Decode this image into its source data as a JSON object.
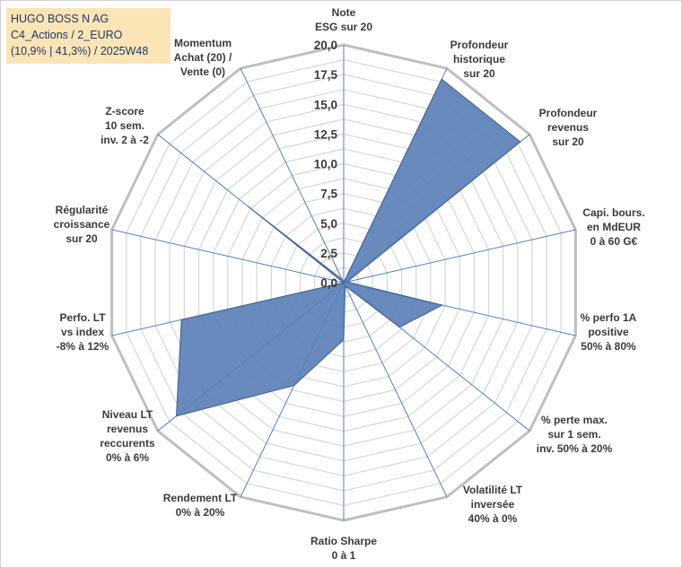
{
  "title_lines": [
    "HUGO BOSS N AG",
    "C4_Actions / 2_EURO",
    "(10,9% | 41,3%) / 2025W48"
  ],
  "chart_data": {
    "type": "radar",
    "title": "HUGO BOSS N AG",
    "range": [
      0,
      20
    ],
    "ticks": [
      "0,0",
      "2,5",
      "5,0",
      "7,5",
      "10,0",
      "12,5",
      "15,0",
      "17,5",
      "20,0"
    ],
    "axes": [
      {
        "label": [
          "Note",
          "ESG sur 20"
        ],
        "value": 0
      },
      {
        "label": [
          "Profondeur",
          "historique",
          "sur 20"
        ],
        "value": 19
      },
      {
        "label": [
          "Profondeur",
          "revenus",
          "sur 20"
        ],
        "value": 19
      },
      {
        "label": [
          "Capi. bours.",
          "en MdEUR",
          "0 à 60 G€"
        ],
        "value": 0.3
      },
      {
        "label": [
          "% perfo 1A",
          "positive",
          "50% à 80%"
        ],
        "value": 8.5
      },
      {
        "label": [
          "% perte max.",
          "sur 1 sem.",
          "inv. 50% à 20%"
        ],
        "value": 6
      },
      {
        "label": [
          "Volatilité LT",
          "inversée",
          "40% à 0%"
        ],
        "value": 0.3
      },
      {
        "label": [
          "Ratio Sharpe",
          "0 à 1"
        ],
        "value": 4.8
      },
      {
        "label": [
          "Rendement LT",
          "0% à 20%"
        ],
        "value": 9.6
      },
      {
        "label": [
          "Niveau LT",
          "revenus",
          "reccurents",
          "0% à 6%"
        ],
        "value": 18
      },
      {
        "label": [
          "Perfo. LT",
          "vs index",
          "-8% à 12%"
        ],
        "value": 14
      },
      {
        "label": [
          "Régularité",
          "croissance",
          "sur 20"
        ],
        "value": 0
      },
      {
        "label": [
          "Z-score",
          "10 sem.",
          "inv. 2 à -2"
        ],
        "value": 10.3
      },
      {
        "label": [
          "Momentum",
          "Achat (20) /",
          "Vente (0)"
        ],
        "value": 0.3
      }
    ]
  },
  "colors": {
    "fill": "#5b80b6",
    "fill_stroke": "#3e5f91",
    "grid": "#d6d6d6",
    "outer_ring": "#bfbfbf",
    "spoke": "#4f81bd",
    "title_bg": "#fbe5b6",
    "title_text": "#1f3864"
  }
}
